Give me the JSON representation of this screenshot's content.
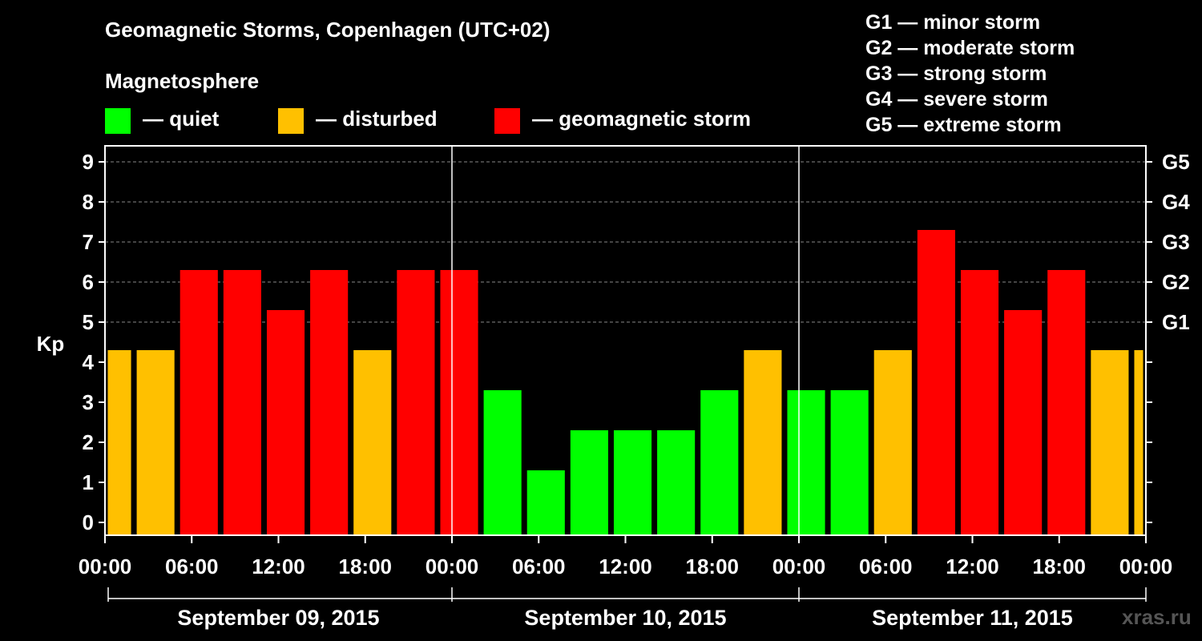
{
  "title": "Geomagnetic Storms, Copenhagen (UTC+02)",
  "magnetosphere_label": "Magnetosphere",
  "legend": [
    {
      "label": "— quiet",
      "color": "#00ff00"
    },
    {
      "label": "— disturbed",
      "color": "#ffc000"
    },
    {
      "label": "— geomagnetic storm",
      "color": "#ff0000"
    }
  ],
  "g_scale_legend": [
    "G1 — minor storm",
    "G2 — moderate storm",
    "G3 — strong storm",
    "G4 — severe storm",
    "G5 — extreme storm"
  ],
  "watermark": "xras.ru",
  "chart_data": {
    "type": "bar",
    "ylabel": "Kp",
    "ylim": [
      0,
      9
    ],
    "yticks": [
      "0",
      "1",
      "2",
      "3",
      "4",
      "5",
      "6",
      "7",
      "8",
      "9"
    ],
    "right_axis_labels": [
      {
        "value": 5,
        "label": "G1"
      },
      {
        "value": 6,
        "label": "G2"
      },
      {
        "value": 7,
        "label": "G3"
      },
      {
        "value": 8,
        "label": "G4"
      },
      {
        "value": 9,
        "label": "G5"
      }
    ],
    "grid": true,
    "time_ticks": [
      "00:00",
      "06:00",
      "12:00",
      "18:00",
      "00:00",
      "06:00",
      "12:00",
      "18:00",
      "00:00",
      "06:00",
      "12:00",
      "18:00",
      "00:00"
    ],
    "days": [
      "September 09, 2015",
      "September 10, 2015",
      "September 11, 2015"
    ],
    "interval_hours": 3,
    "offset_hours": -1,
    "values": [
      4,
      4,
      6,
      6,
      5,
      6,
      4,
      6,
      6,
      3,
      1,
      2,
      2,
      2,
      3,
      4,
      3,
      3,
      4,
      7,
      6,
      5,
      6,
      4,
      4
    ],
    "colors": {
      "quiet": "#00ff00",
      "disturbed": "#ffc000",
      "storm": "#ff0000"
    }
  }
}
